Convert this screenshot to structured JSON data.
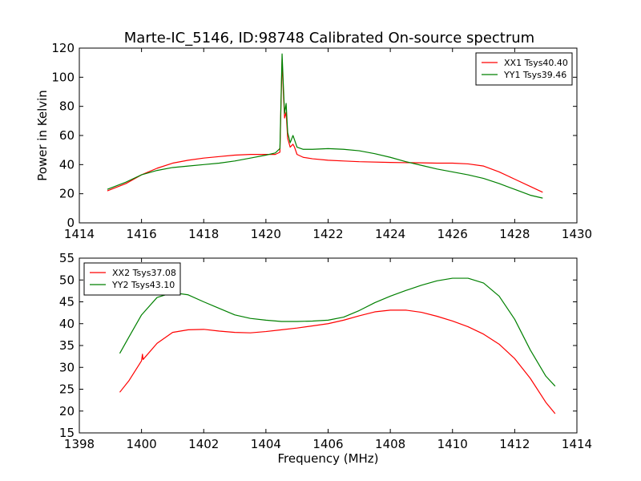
{
  "figure": {
    "title": "Marte-IC_5146, ID:98748 Calibrated On-source spectrum"
  },
  "chart_data": [
    {
      "type": "line",
      "xlabel": "",
      "ylabel": "Power in Kelvin",
      "xlim": [
        1414,
        1430
      ],
      "ylim": [
        0,
        120
      ],
      "xticks": [
        "1414",
        "1416",
        "1418",
        "1420",
        "1422",
        "1424",
        "1426",
        "1428",
        "1430"
      ],
      "yticks": [
        "0",
        "20",
        "40",
        "60",
        "80",
        "100",
        "120"
      ],
      "legend_position": "top-right",
      "grid": false,
      "series": [
        {
          "name": "XX1 Tsys40.40",
          "color": "#ff0000",
          "points": [
            [
              1414.9,
              22
            ],
            [
              1415.5,
              27
            ],
            [
              1416.0,
              33
            ],
            [
              1416.5,
              37.5
            ],
            [
              1417.0,
              41
            ],
            [
              1417.5,
              43
            ],
            [
              1418.0,
              44.5
            ],
            [
              1418.5,
              45.5
            ],
            [
              1419.0,
              46.5
            ],
            [
              1419.5,
              47
            ],
            [
              1420.0,
              47
            ],
            [
              1420.3,
              47
            ],
            [
              1420.45,
              48.5
            ],
            [
              1420.52,
              112
            ],
            [
              1420.56,
              90
            ],
            [
              1420.6,
              72
            ],
            [
              1420.65,
              76
            ],
            [
              1420.7,
              58
            ],
            [
              1420.78,
              52
            ],
            [
              1420.87,
              54
            ],
            [
              1420.92,
              52
            ],
            [
              1421.0,
              47
            ],
            [
              1421.2,
              45
            ],
            [
              1421.5,
              44
            ],
            [
              1422.0,
              43
            ],
            [
              1422.5,
              42.5
            ],
            [
              1423.0,
              42
            ],
            [
              1424.0,
              41.5
            ],
            [
              1425.0,
              41.2
            ],
            [
              1425.5,
              41
            ],
            [
              1426.0,
              41
            ],
            [
              1426.5,
              40.5
            ],
            [
              1427.0,
              39
            ],
            [
              1427.5,
              35
            ],
            [
              1428.0,
              30
            ],
            [
              1428.5,
              25
            ],
            [
              1428.9,
              21
            ]
          ]
        },
        {
          "name": "YY1 Tsys39.46",
          "color": "#008000",
          "points": [
            [
              1414.9,
              23
            ],
            [
              1415.5,
              28
            ],
            [
              1416.0,
              33
            ],
            [
              1416.5,
              36
            ],
            [
              1417.0,
              38
            ],
            [
              1417.5,
              39
            ],
            [
              1418.0,
              40
            ],
            [
              1418.5,
              41
            ],
            [
              1419.0,
              42.5
            ],
            [
              1419.5,
              44.5
            ],
            [
              1420.0,
              46.5
            ],
            [
              1420.3,
              48
            ],
            [
              1420.45,
              51
            ],
            [
              1420.52,
              116
            ],
            [
              1420.56,
              95
            ],
            [
              1420.6,
              75
            ],
            [
              1420.65,
              82
            ],
            [
              1420.7,
              62
            ],
            [
              1420.78,
              55
            ],
            [
              1420.87,
              60
            ],
            [
              1420.92,
              57
            ],
            [
              1421.0,
              52
            ],
            [
              1421.2,
              50.5
            ],
            [
              1421.5,
              50.5
            ],
            [
              1422.0,
              51
            ],
            [
              1422.5,
              50.5
            ],
            [
              1423.0,
              49.5
            ],
            [
              1423.5,
              47.5
            ],
            [
              1424.0,
              45
            ],
            [
              1424.5,
              42
            ],
            [
              1425.0,
              39.5
            ],
            [
              1425.5,
              37
            ],
            [
              1426.0,
              35
            ],
            [
              1426.5,
              33
            ],
            [
              1427.0,
              30.5
            ],
            [
              1427.5,
              27
            ],
            [
              1428.0,
              23
            ],
            [
              1428.5,
              19
            ],
            [
              1428.9,
              17
            ]
          ]
        }
      ]
    },
    {
      "type": "line",
      "xlabel": "Frequency (MHz)",
      "ylabel": "",
      "xlim": [
        1398,
        1414
      ],
      "ylim": [
        15,
        55
      ],
      "xticks": [
        "1398",
        "1400",
        "1402",
        "1404",
        "1406",
        "1408",
        "1410",
        "1412",
        "1414"
      ],
      "yticks": [
        "15",
        "20",
        "25",
        "30",
        "35",
        "40",
        "45",
        "50",
        "55"
      ],
      "legend_position": "top-left",
      "grid": false,
      "series": [
        {
          "name": "XX2 Tsys37.08",
          "color": "#ff0000",
          "points": [
            [
              1399.3,
              24.3
            ],
            [
              1399.6,
              27
            ],
            [
              1400.0,
              31.5
            ],
            [
              1400.03,
              33
            ],
            [
              1400.05,
              31.8
            ],
            [
              1400.5,
              35.5
            ],
            [
              1401.0,
              38
            ],
            [
              1401.5,
              38.6
            ],
            [
              1402.0,
              38.7
            ],
            [
              1402.5,
              38.3
            ],
            [
              1403.0,
              38
            ],
            [
              1403.5,
              37.9
            ],
            [
              1404.0,
              38.2
            ],
            [
              1404.5,
              38.6
            ],
            [
              1405.0,
              39
            ],
            [
              1405.5,
              39.5
            ],
            [
              1406.0,
              40
            ],
            [
              1406.5,
              40.8
            ],
            [
              1407.0,
              41.8
            ],
            [
              1407.5,
              42.7
            ],
            [
              1408.0,
              43.1
            ],
            [
              1408.5,
              43.1
            ],
            [
              1409.0,
              42.6
            ],
            [
              1409.5,
              41.7
            ],
            [
              1410.0,
              40.6
            ],
            [
              1410.5,
              39.3
            ],
            [
              1411.0,
              37.6
            ],
            [
              1411.5,
              35.3
            ],
            [
              1412.0,
              32
            ],
            [
              1412.5,
              27.5
            ],
            [
              1413.0,
              22
            ],
            [
              1413.3,
              19.4
            ]
          ]
        },
        {
          "name": "YY2 Tsys43.10",
          "color": "#008000",
          "points": [
            [
              1399.3,
              33.2
            ],
            [
              1399.6,
              37
            ],
            [
              1400.0,
              42
            ],
            [
              1400.5,
              46
            ],
            [
              1401.0,
              47.1
            ],
            [
              1401.5,
              46.6
            ],
            [
              1402.0,
              45
            ],
            [
              1402.5,
              43.5
            ],
            [
              1403.0,
              42
            ],
            [
              1403.5,
              41.2
            ],
            [
              1404.0,
              40.8
            ],
            [
              1404.5,
              40.5
            ],
            [
              1405.0,
              40.5
            ],
            [
              1405.5,
              40.6
            ],
            [
              1406.0,
              40.8
            ],
            [
              1406.5,
              41.5
            ],
            [
              1407.0,
              43
            ],
            [
              1407.5,
              44.8
            ],
            [
              1408.0,
              46.3
            ],
            [
              1408.5,
              47.6
            ],
            [
              1409.0,
              48.8
            ],
            [
              1409.5,
              49.8
            ],
            [
              1410.0,
              50.4
            ],
            [
              1410.5,
              50.4
            ],
            [
              1411.0,
              49.3
            ],
            [
              1411.5,
              46.3
            ],
            [
              1412.0,
              41
            ],
            [
              1412.5,
              34
            ],
            [
              1413.0,
              28
            ],
            [
              1413.3,
              25.7
            ]
          ]
        }
      ]
    }
  ]
}
